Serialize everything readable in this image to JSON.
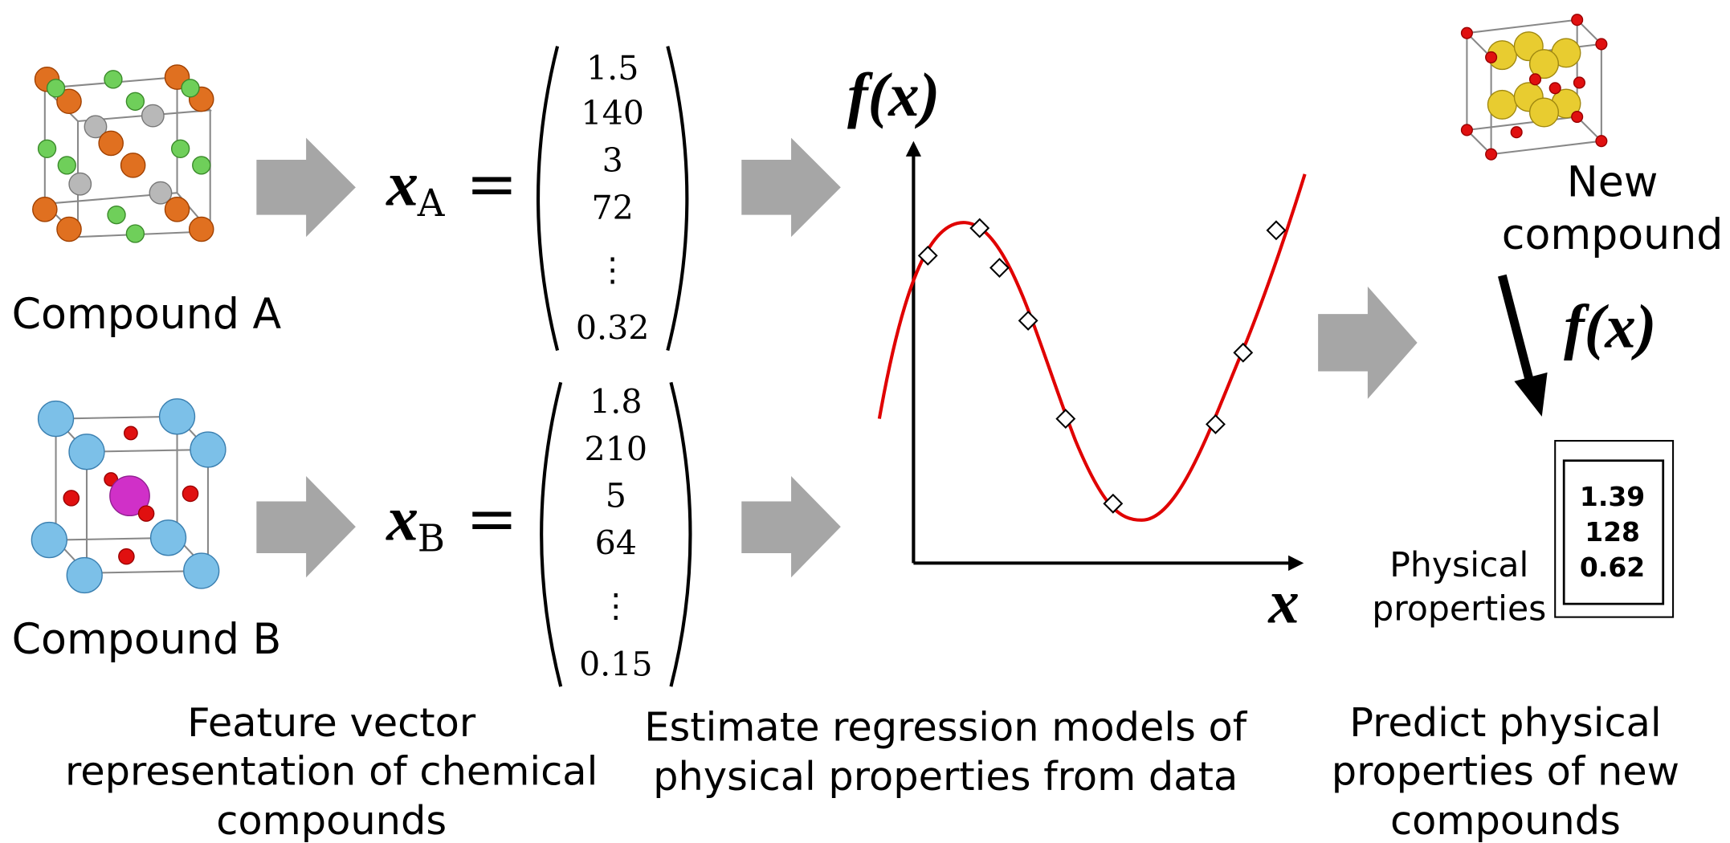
{
  "compounds": [
    {
      "label": "Compound A"
    },
    {
      "label": "Compound B"
    }
  ],
  "vectors": [
    {
      "symbol": "x",
      "subscript": "A",
      "relation": "=",
      "entries": [
        "1.5",
        "140",
        "3",
        "72",
        "⋮",
        "0.32"
      ]
    },
    {
      "symbol": "x",
      "subscript": "B",
      "relation": "=",
      "entries": [
        "1.8",
        "210",
        "5",
        "64",
        "⋮",
        "0.15"
      ]
    }
  ],
  "regression": {
    "y_label": "f(x)",
    "x_label": "x"
  },
  "new_compound": {
    "label_lines": [
      "New",
      "compound"
    ]
  },
  "model_label": "f(x)",
  "prediction": {
    "label_lines": [
      "Physical",
      "properties"
    ],
    "values": [
      "1.39",
      "128",
      "0.62"
    ]
  },
  "captions": [
    {
      "lines": [
        "Feature vector",
        "representation of chemical",
        "compounds"
      ]
    },
    {
      "lines": [
        "Estimate regression models of",
        "physical properties from data"
      ]
    },
    {
      "lines": [
        "Predict physical",
        "properties of new",
        "compounds"
      ]
    }
  ]
}
